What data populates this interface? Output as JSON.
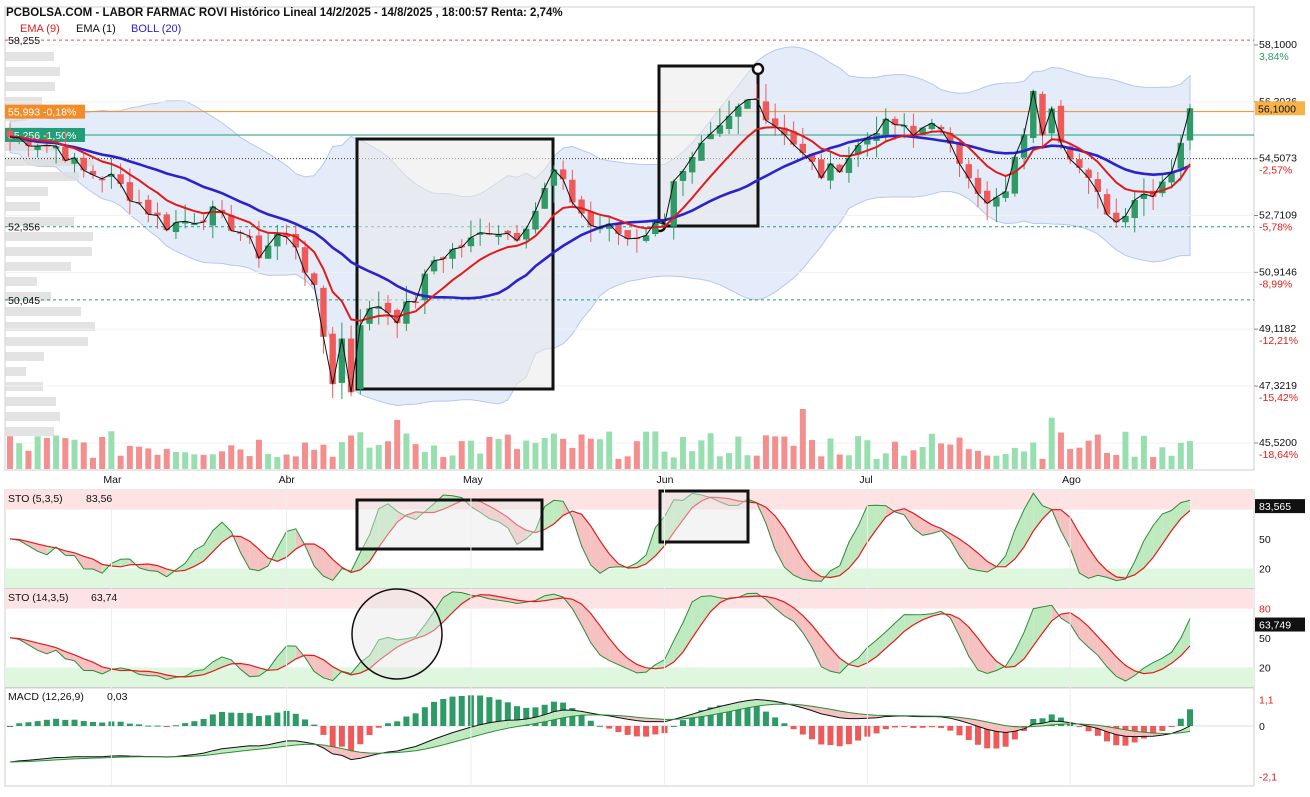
{
  "header": {
    "title": "PCBOLSA.COM - LABOR FARMAC ROVI Histórico Lineal 14/2/2025 - 14/8/2025 , 18:00:57 Renta: 2,74%",
    "legend": [
      {
        "label": "EMA (9)",
        "color": "#e01b1b"
      },
      {
        "label": "EMA (1)",
        "color": "#111111"
      },
      {
        "label": "BOLL (20)",
        "color": "#2b22c9"
      }
    ]
  },
  "colors": {
    "up": "#2e9a65",
    "down": "#ee5a5a",
    "ema9": "#e01b1b",
    "ema1": "#111111",
    "boll": "#2b22c9",
    "band": "#dbe6f7",
    "vol_up": "#98dfb0",
    "vol_down": "#f48f8f"
  },
  "price_axis": {
    "ticks": [
      {
        "v": 58.1,
        "label": "58,1000",
        "pct": "3,84%",
        "pct_color": "#2e9a65"
      },
      {
        "v": 56.3036,
        "label": "56,3036",
        "pct": "",
        "pct_color": "#2e9a65"
      },
      {
        "v": 54.5073,
        "label": "54,5073",
        "pct": "-2,57%",
        "pct_color": "#e01b1b"
      },
      {
        "v": 52.7109,
        "label": "52,7109",
        "pct": "-5,78%",
        "pct_color": "#e01b1b"
      },
      {
        "v": 50.9146,
        "label": "50,9146",
        "pct": "-8,99%",
        "pct_color": "#e01b1b"
      },
      {
        "v": 49.1182,
        "label": "49,1182",
        "pct": "-12,21%",
        "pct_color": "#e01b1b"
      },
      {
        "v": 47.3219,
        "label": "47,3219",
        "pct": "-15,42%",
        "pct_color": "#e01b1b"
      },
      {
        "v": 45.52,
        "label": "45,5200",
        "pct": "-18,64%",
        "pct_color": "#e01b1b"
      }
    ],
    "last_price": "56,1000",
    "left_levels": [
      {
        "v": 58.255,
        "label": "58,255",
        "style": "red-dash"
      },
      {
        "v": 55.993,
        "label": "55,993 -0,18%",
        "style": "orange"
      },
      {
        "v": 55.256,
        "label": "55,256 -1,50%",
        "style": "teal"
      },
      {
        "v": 52.356,
        "label": "52,356",
        "style": "teal-dash"
      },
      {
        "v": 50.045,
        "label": "50,045",
        "style": "teal-dash"
      }
    ]
  },
  "x_axis": {
    "labels": [
      {
        "i": 11,
        "label": "Mar"
      },
      {
        "i": 30,
        "label": "Abr"
      },
      {
        "i": 50,
        "label": "May"
      },
      {
        "i": 71,
        "label": "Jun"
      },
      {
        "i": 93,
        "label": "Jul"
      },
      {
        "i": 115,
        "label": "Ago"
      }
    ]
  },
  "indicators": {
    "sto1": {
      "label": "STO (5,3,5)",
      "value": "83,56",
      "badge": "83,565",
      "ticks": [
        "50",
        "20"
      ]
    },
    "sto2": {
      "label": "STO (14,3,5)",
      "value": "63,74",
      "badge": "63,749",
      "ticks": [
        "80",
        "50",
        "20"
      ]
    },
    "macd": {
      "label": "MACD (12,26,9)",
      "value": "0,03",
      "ticks": [
        "1,1",
        "0",
        "-2,1"
      ]
    }
  },
  "chart_data": {
    "type": "candlestick",
    "title": "PCBOLSA.COM - LABOR FARMAC ROVI Histórico Lineal 14/2/2025 - 14/8/2025 , 18:00:57 Renta: 2,74%",
    "x_range": [
      "14/2/2025",
      "14/8/2025"
    ],
    "y_range": [
      45.52,
      58.1
    ],
    "n_sessions": 129,
    "close_anchors": [
      [
        0,
        55.2
      ],
      [
        5,
        54.9
      ],
      [
        8,
        54.1
      ],
      [
        11,
        53.9
      ],
      [
        14,
        53.1
      ],
      [
        17,
        52.4
      ],
      [
        20,
        52.6
      ],
      [
        22,
        52.8
      ],
      [
        25,
        52.2
      ],
      [
        27,
        51.5
      ],
      [
        29,
        52.1
      ],
      [
        31,
        51.8
      ],
      [
        33,
        50.3
      ],
      [
        35,
        47.5
      ],
      [
        36,
        48.8
      ],
      [
        37,
        47.2
      ],
      [
        38,
        49.4
      ],
      [
        40,
        49.9
      ],
      [
        42,
        49.5
      ],
      [
        44,
        50.1
      ],
      [
        46,
        51.3
      ],
      [
        48,
        51.6
      ],
      [
        50,
        51.9
      ],
      [
        52,
        52.3
      ],
      [
        55,
        52.1
      ],
      [
        57,
        52.9
      ],
      [
        59,
        54.1
      ],
      [
        61,
        53.2
      ],
      [
        63,
        52.4
      ],
      [
        65,
        52.3
      ],
      [
        67,
        52.0
      ],
      [
        69,
        52.2
      ],
      [
        71,
        52.6
      ],
      [
        72,
        53.9
      ],
      [
        73,
        54.0
      ],
      [
        75,
        54.8
      ],
      [
        77,
        55.4
      ],
      [
        79,
        56.1
      ],
      [
        81,
        56.6
      ],
      [
        82,
        55.8
      ],
      [
        84,
        55.4
      ],
      [
        86,
        54.6
      ],
      [
        88,
        54.0
      ],
      [
        90,
        54.3
      ],
      [
        92,
        54.9
      ],
      [
        94,
        55.5
      ],
      [
        96,
        55.6
      ],
      [
        98,
        55.2
      ],
      [
        100,
        55.8
      ],
      [
        102,
        54.8
      ],
      [
        104,
        54.1
      ],
      [
        106,
        53.0
      ],
      [
        108,
        53.4
      ],
      [
        110,
        55.4
      ],
      [
        111,
        56.5
      ],
      [
        112,
        55.4
      ],
      [
        113,
        56.3
      ],
      [
        114,
        55.2
      ],
      [
        116,
        54.2
      ],
      [
        118,
        53.3
      ],
      [
        120,
        52.5
      ],
      [
        122,
        53.3
      ],
      [
        124,
        53.5
      ],
      [
        126,
        54.2
      ],
      [
        127,
        55.1
      ],
      [
        128,
        56.1
      ]
    ],
    "last_close": 56.1,
    "levels": {
      "high_period": 58.255,
      "last": 55.993,
      "ref": 55.256,
      "support1": 52.356,
      "support2": 50.045
    },
    "indicators": {
      "sto_5_3_5": {
        "last": 83.56,
        "levels": [
          80,
          50,
          20
        ]
      },
      "sto_14_3_5": {
        "last": 63.74,
        "levels": [
          80,
          50,
          20
        ]
      },
      "macd_12_26_9": {
        "last": 0.03,
        "ylim": [
          -2.1,
          1.1
        ]
      }
    },
    "legend": [
      "EMA (9)",
      "EMA (1)",
      "BOLL (20)"
    ]
  }
}
